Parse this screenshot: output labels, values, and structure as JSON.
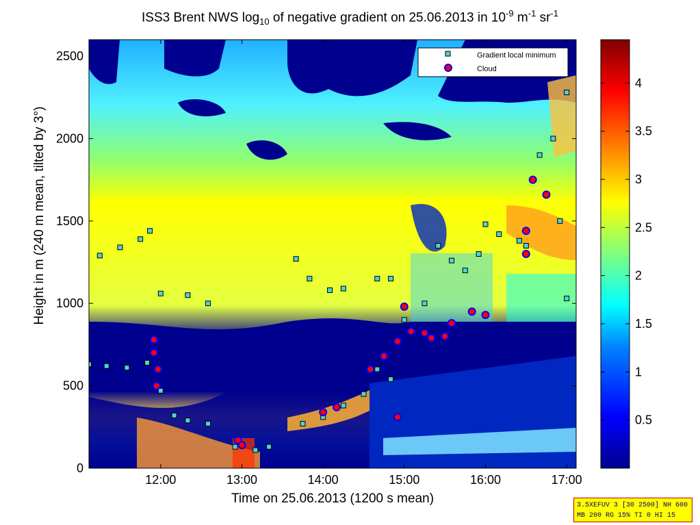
{
  "title": {
    "main": "ISS3 Brent NWS log",
    "sub": "10",
    "mid": " of negative gradient on 25.06.2013 in 10",
    "sup1": "-9",
    "unit1": " m",
    "sup2": "-1",
    "unit2": " sr",
    "sup3": "-1"
  },
  "info_box": {
    "line1": "3.5XEFUV 3 [30 2500] NH 600",
    "line2": "MB 200 RG 15% TI 0 HI 15"
  },
  "colors": {
    "cmap": [
      "#00008f",
      "#0000ff",
      "#0080ff",
      "#00ffff",
      "#80ff80",
      "#ffff00",
      "#ff8000",
      "#ff0000",
      "#800000"
    ],
    "gradient_marker": "#4fd3d6",
    "cloud_marker": "#ff0000",
    "cloud_edge": "#0000ff"
  },
  "chart_data": {
    "type": "heatmap",
    "xlabel": "Time on 25.06.2013 (1200 s mean)",
    "ylabel": "Height in m (240 m mean, tilted by 3°)",
    "xlim": [
      "11:07",
      "17:07"
    ],
    "ylim": [
      0,
      2600
    ],
    "x_ticks": [
      "12:00",
      "13:00",
      "14:00",
      "15:00",
      "16:00",
      "17:00"
    ],
    "y_ticks": [
      0,
      500,
      1000,
      1500,
      2000,
      2500
    ],
    "colorbar": {
      "range": [
        0,
        4.45
      ],
      "ticks": [
        0.5,
        1,
        1.5,
        2,
        2.5,
        3,
        3.5,
        4
      ]
    },
    "legend": {
      "position": "top-right",
      "entries": [
        "Gradient local minimum",
        "Cloud"
      ]
    },
    "series": [
      {
        "name": "Gradient local minimum",
        "points": [
          [
            "11:07",
            630
          ],
          [
            "11:20",
            620
          ],
          [
            "11:35",
            610
          ],
          [
            "11:50",
            640
          ],
          [
            "11:15",
            1290
          ],
          [
            "11:30",
            1340
          ],
          [
            "11:45",
            1390
          ],
          [
            "11:52",
            1440
          ],
          [
            "12:00",
            470
          ],
          [
            "12:10",
            320
          ],
          [
            "12:20",
            290
          ],
          [
            "12:35",
            270
          ],
          [
            "12:00",
            1060
          ],
          [
            "12:20",
            1050
          ],
          [
            "12:35",
            1000
          ],
          [
            "12:55",
            130
          ],
          [
            "13:10",
            110
          ],
          [
            "13:20",
            130
          ],
          [
            "13:40",
            1270
          ],
          [
            "13:50",
            1150
          ],
          [
            "14:05",
            1080
          ],
          [
            "14:15",
            1090
          ],
          [
            "13:45",
            270
          ],
          [
            "14:00",
            310
          ],
          [
            "14:15",
            380
          ],
          [
            "14:30",
            450
          ],
          [
            "14:40",
            1150
          ],
          [
            "14:50",
            1150
          ],
          [
            "14:40",
            600
          ],
          [
            "14:50",
            540
          ],
          [
            "15:00",
            900
          ],
          [
            "15:15",
            1000
          ],
          [
            "15:25",
            1350
          ],
          [
            "15:35",
            1260
          ],
          [
            "15:45",
            1200
          ],
          [
            "15:55",
            1300
          ],
          [
            "16:00",
            1480
          ],
          [
            "16:10",
            1420
          ],
          [
            "16:25",
            1380
          ],
          [
            "16:30",
            1350
          ],
          [
            "16:40",
            1900
          ],
          [
            "16:50",
            2000
          ],
          [
            "16:55",
            1500
          ],
          [
            "17:00",
            1030
          ],
          [
            "17:00",
            2280
          ]
        ]
      },
      {
        "name": "Cloud",
        "points": [
          [
            "11:55",
            780
          ],
          [
            "11:55",
            700
          ],
          [
            "11:58",
            600
          ],
          [
            "11:57",
            500
          ],
          [
            "12:57",
            170
          ],
          [
            "13:00",
            140
          ],
          [
            "14:00",
            340
          ],
          [
            "14:10",
            370
          ],
          [
            "14:35",
            600
          ],
          [
            "14:45",
            680
          ],
          [
            "14:55",
            770
          ],
          [
            "15:00",
            980
          ],
          [
            "15:05",
            830
          ],
          [
            "15:15",
            820
          ],
          [
            "15:20",
            790
          ],
          [
            "15:30",
            800
          ],
          [
            "15:35",
            880
          ],
          [
            "15:50",
            950
          ],
          [
            "16:00",
            930
          ],
          [
            "16:30",
            1440
          ],
          [
            "16:30",
            1300
          ],
          [
            "16:35",
            1750
          ],
          [
            "16:45",
            1660
          ],
          [
            "14:55",
            310
          ]
        ]
      }
    ]
  }
}
